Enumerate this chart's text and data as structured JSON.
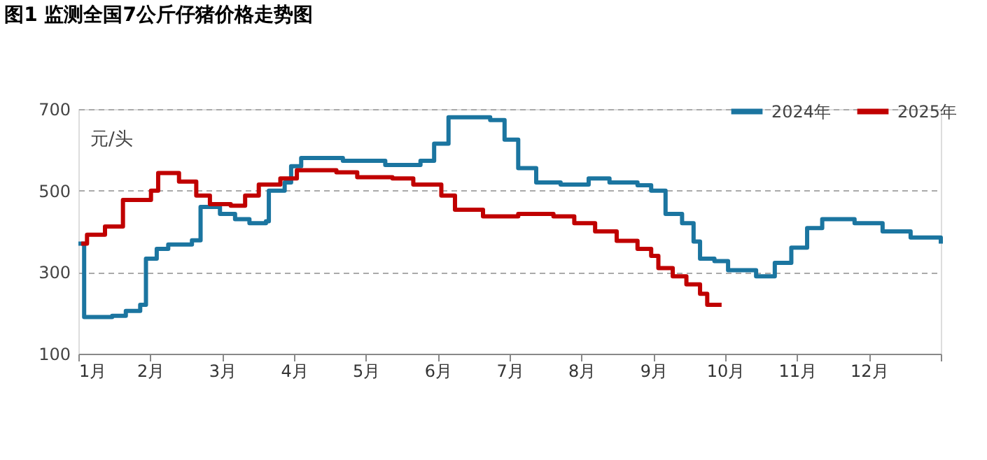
{
  "chart_data": {
    "type": "step",
    "title": "图1 监测全国7公斤仔猪价格走势图",
    "ylabel": "元/头",
    "xlim": [
      1,
      13
    ],
    "xticks": [
      {
        "value": 1,
        "label": "1月"
      },
      {
        "value": 2,
        "label": "2月"
      },
      {
        "value": 3,
        "label": "3月"
      },
      {
        "value": 4,
        "label": "4月"
      },
      {
        "value": 5,
        "label": "5月"
      },
      {
        "value": 6,
        "label": "6月"
      },
      {
        "value": 7,
        "label": "7月"
      },
      {
        "value": 8,
        "label": "8月"
      },
      {
        "value": 9,
        "label": "9月"
      },
      {
        "value": 10,
        "label": "10月"
      },
      {
        "value": 11,
        "label": "11月"
      },
      {
        "value": 12,
        "label": "12月"
      },
      {
        "value": 13,
        "label": null
      }
    ],
    "ylim": [
      100,
      700
    ],
    "yticks": [
      100,
      300,
      500,
      700
    ],
    "grid": "y",
    "legend": "top right",
    "marker": "none",
    "line_style": "solid",
    "series": [
      {
        "name": "2024年",
        "color": "#1b75a0",
        "x": [
          1.0,
          1.08,
          1.47,
          1.66,
          1.86,
          1.94,
          2.09,
          2.25,
          2.58,
          2.7,
          2.93,
          2.97,
          3.18,
          3.38,
          3.61,
          3.65,
          3.87,
          3.96,
          4.1,
          4.68,
          5.27,
          5.76,
          5.95,
          6.15,
          6.54,
          6.73,
          6.93,
          7.12,
          7.37,
          7.71,
          8.1,
          8.39,
          8.78,
          8.97,
          9.17,
          9.4,
          9.56,
          9.65,
          9.85,
          10.04,
          10.34,
          10.43,
          10.63,
          10.69,
          10.92,
          11.14,
          11.35,
          11.8,
          12.19,
          12.58,
          13.0
        ],
        "values": [
          370,
          190,
          193,
          205,
          220,
          333,
          357,
          368,
          378,
          460,
          460,
          443,
          430,
          420,
          425,
          500,
          520,
          560,
          580,
          573,
          563,
          573,
          615,
          680,
          680,
          673,
          625,
          555,
          520,
          515,
          530,
          520,
          513,
          500,
          443,
          420,
          375,
          333,
          327,
          305,
          305,
          290,
          290,
          323,
          360,
          408,
          430,
          420,
          400,
          385,
          370
        ]
      },
      {
        "name": "2025年",
        "color": "#c00000",
        "x": [
          1.04,
          1.12,
          1.37,
          1.62,
          2.01,
          2.11,
          2.33,
          2.4,
          2.64,
          2.83,
          3.12,
          3.32,
          3.51,
          3.81,
          4.04,
          4.59,
          4.88,
          5.37,
          5.66,
          6.05,
          6.24,
          6.63,
          7.12,
          7.61,
          7.9,
          8.19,
          8.49,
          8.78,
          8.97,
          9.07,
          9.27,
          9.46,
          9.65,
          9.75,
          9.95
        ],
        "values": [
          370,
          392,
          412,
          477,
          500,
          543,
          543,
          522,
          488,
          467,
          463,
          488,
          515,
          530,
          550,
          545,
          533,
          530,
          515,
          488,
          453,
          437,
          443,
          437,
          420,
          400,
          377,
          357,
          340,
          310,
          290,
          270,
          247,
          220,
          220
        ]
      }
    ]
  }
}
